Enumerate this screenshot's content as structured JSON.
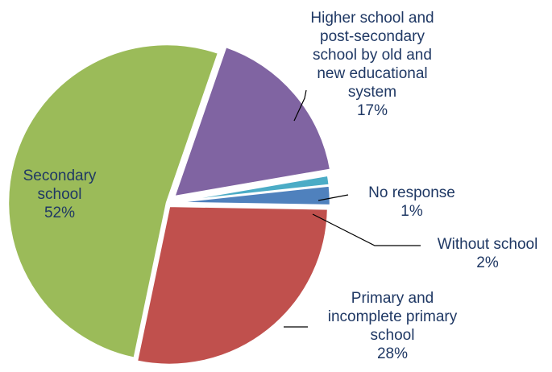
{
  "chart_data": {
    "type": "pie",
    "title": "",
    "slices": [
      {
        "lines": [
          "Higher school and",
          "post-secondary",
          "school by old and",
          "new educational",
          "system"
        ],
        "percent_label": "17%",
        "value": 17,
        "color": "#8064a2"
      },
      {
        "lines": [
          "No response"
        ],
        "percent_label": "1%",
        "value": 1,
        "color": "#4bacc6"
      },
      {
        "lines": [
          "Without school"
        ],
        "percent_label": "2%",
        "value": 2,
        "color": "#4f81bd"
      },
      {
        "lines": [
          "Primary and",
          "incomplete primary",
          "school"
        ],
        "percent_label": "28%",
        "value": 28,
        "color": "#c0504d"
      },
      {
        "lines": [
          "Secondary",
          "school"
        ],
        "percent_label": "52%",
        "value": 52,
        "color": "#9bbb59"
      }
    ]
  }
}
